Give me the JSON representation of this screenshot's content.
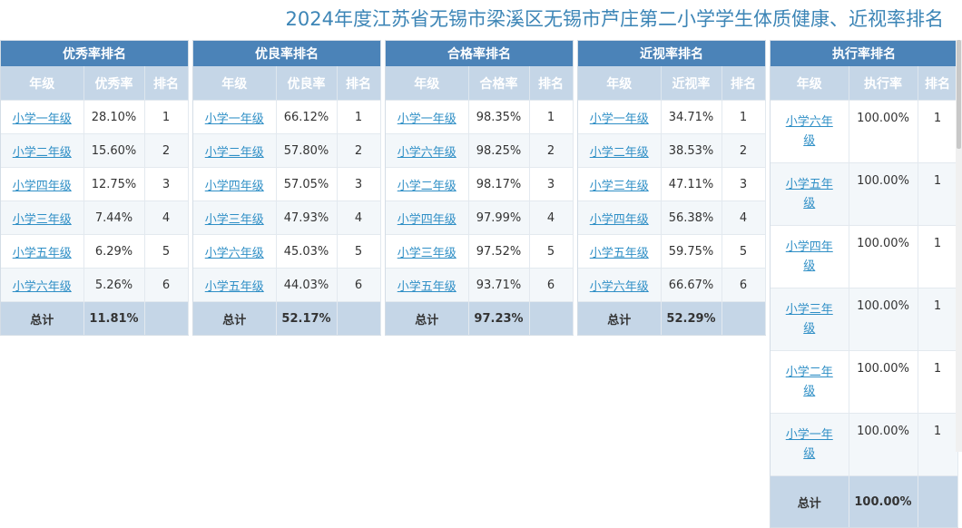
{
  "page": {
    "title": "2024年度江苏省无锡市梁溪区无锡市芦庄第二小学学生体质健康、近视率排名"
  },
  "panels": [
    {
      "caption": "优秀率排名",
      "headers": [
        "年级",
        "优秀率",
        "排名"
      ],
      "rows": [
        {
          "grade": "小学一年级",
          "value": "28.10%",
          "rank": "1"
        },
        {
          "grade": "小学二年级",
          "value": "15.60%",
          "rank": "2"
        },
        {
          "grade": "小学四年级",
          "value": "12.75%",
          "rank": "3"
        },
        {
          "grade": "小学三年级",
          "value": "7.44%",
          "rank": "4"
        },
        {
          "grade": "小学五年级",
          "value": "6.29%",
          "rank": "5"
        },
        {
          "grade": "小学六年级",
          "value": "5.26%",
          "rank": "6"
        }
      ],
      "total_label": "总计",
      "total_value": "11.81%"
    },
    {
      "caption": "优良率排名",
      "headers": [
        "年级",
        "优良率",
        "排名"
      ],
      "rows": [
        {
          "grade": "小学一年级",
          "value": "66.12%",
          "rank": "1"
        },
        {
          "grade": "小学二年级",
          "value": "57.80%",
          "rank": "2"
        },
        {
          "grade": "小学四年级",
          "value": "57.05%",
          "rank": "3"
        },
        {
          "grade": "小学三年级",
          "value": "47.93%",
          "rank": "4"
        },
        {
          "grade": "小学六年级",
          "value": "45.03%",
          "rank": "5"
        },
        {
          "grade": "小学五年级",
          "value": "44.03%",
          "rank": "6"
        }
      ],
      "total_label": "总计",
      "total_value": "52.17%"
    },
    {
      "caption": "合格率排名",
      "headers": [
        "年级",
        "合格率",
        "排名"
      ],
      "rows": [
        {
          "grade": "小学一年级",
          "value": "98.35%",
          "rank": "1"
        },
        {
          "grade": "小学六年级",
          "value": "98.25%",
          "rank": "2"
        },
        {
          "grade": "小学二年级",
          "value": "98.17%",
          "rank": "3"
        },
        {
          "grade": "小学四年级",
          "value": "97.99%",
          "rank": "4"
        },
        {
          "grade": "小学三年级",
          "value": "97.52%",
          "rank": "5"
        },
        {
          "grade": "小学五年级",
          "value": "93.71%",
          "rank": "6"
        }
      ],
      "total_label": "总计",
      "total_value": "97.23%"
    },
    {
      "caption": "近视率排名",
      "headers": [
        "年级",
        "近视率",
        "排名"
      ],
      "rows": [
        {
          "grade": "小学一年级",
          "value": "34.71%",
          "rank": "1"
        },
        {
          "grade": "小学二年级",
          "value": "38.53%",
          "rank": "2"
        },
        {
          "grade": "小学三年级",
          "value": "47.11%",
          "rank": "3"
        },
        {
          "grade": "小学四年级",
          "value": "56.38%",
          "rank": "4"
        },
        {
          "grade": "小学五年级",
          "value": "59.75%",
          "rank": "5"
        },
        {
          "grade": "小学六年级",
          "value": "66.67%",
          "rank": "6"
        }
      ],
      "total_label": "总计",
      "total_value": "52.29%"
    },
    {
      "caption": "执行率排名",
      "headers": [
        "年级",
        "执行率",
        "排名"
      ],
      "rows": [
        {
          "grade": "小学六年级",
          "value": "100.00%",
          "rank": "1"
        },
        {
          "grade": "小学五年级",
          "value": "100.00%",
          "rank": "1"
        },
        {
          "grade": "小学四年级",
          "value": "100.00%",
          "rank": "1"
        },
        {
          "grade": "小学三年级",
          "value": "100.00%",
          "rank": "1"
        },
        {
          "grade": "小学二年级",
          "value": "100.00%",
          "rank": "1"
        },
        {
          "grade": "小学一年级",
          "value": "100.00%",
          "rank": "1"
        }
      ],
      "total_label": "总计",
      "total_value": "100.00%"
    }
  ]
}
